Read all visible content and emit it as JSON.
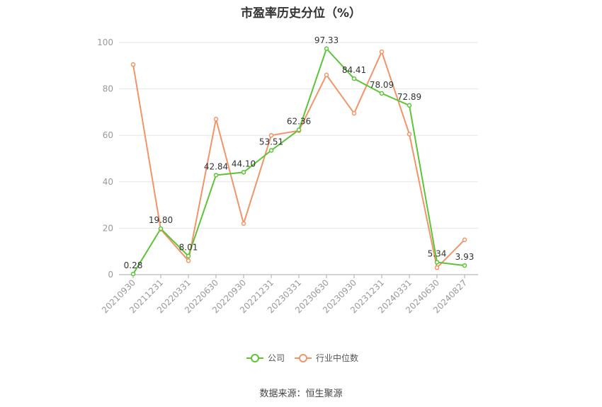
{
  "title": "市盈率历史分位（%）",
  "source_label": "数据来源：",
  "source_name": "恒生聚源",
  "colors": {
    "company": "#5cc437",
    "industry": "#f2936a",
    "grid": "#e6e6e6",
    "axis": "#999999",
    "tick": "#999999",
    "label": "#333333"
  },
  "chart_data": {
    "type": "line",
    "title": "市盈率历史分位（%）",
    "xlabel": "",
    "ylabel": "",
    "ylim": [
      0,
      100
    ],
    "yticks": [
      0,
      20,
      40,
      60,
      80,
      100
    ],
    "grid": true,
    "legend_position": "bottom",
    "categories": [
      "20210930",
      "20211231",
      "20220331",
      "20220630",
      "20220930",
      "20221231",
      "20230331",
      "20230630",
      "20230930",
      "20231231",
      "20240331",
      "20240630",
      "20240827"
    ],
    "series": [
      {
        "name": "公司",
        "values": [
          0.28,
          19.8,
          8.01,
          42.84,
          44.1,
          53.51,
          62.36,
          97.33,
          84.41,
          78.09,
          72.89,
          5.34,
          3.93
        ],
        "labels": [
          "0.28",
          "19.80",
          "8.01",
          "42.84",
          "44.10",
          "53.51",
          "62.36",
          "97.33",
          "84.41",
          "78.09",
          "72.89",
          "5.34",
          "3.93"
        ]
      },
      {
        "name": "行业中位数",
        "values": [
          90.5,
          19.5,
          6.0,
          67.0,
          22.0,
          60.0,
          62.0,
          86.0,
          69.5,
          96.0,
          60.5,
          3.0,
          15.0
        ]
      }
    ]
  }
}
